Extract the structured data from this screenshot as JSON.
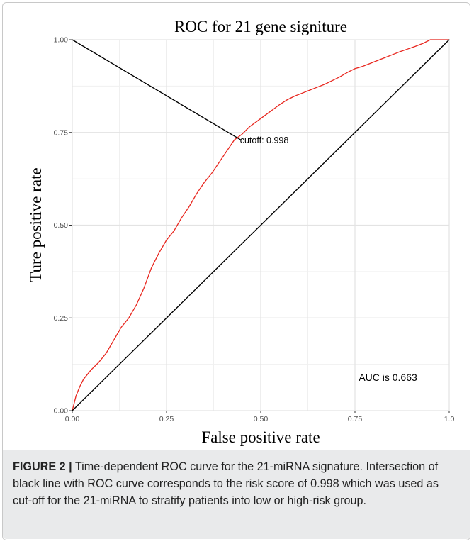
{
  "chart_data": {
    "type": "line",
    "title": "ROC for 21 gene signiture",
    "xlabel": "False positive rate",
    "ylabel": "Ture positive rate",
    "xlim": [
      0,
      1
    ],
    "ylim": [
      0,
      1
    ],
    "x_ticks": [
      0,
      0.25,
      0.5,
      0.75,
      1
    ],
    "x_tick_labels": [
      "0.00",
      "0.25",
      "0.50",
      "0.75",
      "1.0"
    ],
    "y_ticks": [
      0,
      0.25,
      0.5,
      0.75,
      1
    ],
    "y_tick_labels": [
      "0.00",
      "0.25",
      "0.50",
      "0.75",
      "1.00"
    ],
    "grid": true,
    "series": [
      {
        "color": "#e8271f",
        "x": [
          0,
          0.005,
          0.01,
          0.02,
          0.03,
          0.05,
          0.07,
          0.09,
          0.11,
          0.13,
          0.15,
          0.17,
          0.19,
          0.21,
          0.23,
          0.25,
          0.27,
          0.29,
          0.31,
          0.33,
          0.35,
          0.37,
          0.39,
          0.41,
          0.43,
          0.45,
          0.47,
          0.49,
          0.51,
          0.53,
          0.55,
          0.57,
          0.59,
          0.61,
          0.63,
          0.65,
          0.67,
          0.69,
          0.71,
          0.73,
          0.75,
          0.77,
          0.79,
          0.81,
          0.83,
          0.85,
          0.87,
          0.89,
          0.91,
          0.93,
          0.95,
          0.97,
          1.0
        ],
        "y": [
          0,
          0.02,
          0.04,
          0.065,
          0.085,
          0.11,
          0.13,
          0.155,
          0.19,
          0.225,
          0.25,
          0.285,
          0.33,
          0.385,
          0.425,
          0.46,
          0.485,
          0.52,
          0.55,
          0.585,
          0.615,
          0.64,
          0.67,
          0.7,
          0.73,
          0.745,
          0.765,
          0.78,
          0.795,
          0.81,
          0.825,
          0.838,
          0.848,
          0.856,
          0.864,
          0.872,
          0.88,
          0.89,
          0.9,
          0.912,
          0.922,
          0.928,
          0.936,
          0.944,
          0.952,
          0.96,
          0.968,
          0.975,
          0.982,
          0.99,
          1.0,
          1.0,
          1.0
        ]
      },
      {
        "color": "#000000",
        "x": [
          0,
          1
        ],
        "y": [
          0,
          1
        ]
      },
      {
        "color": "#000000",
        "x": [
          0,
          0.447
        ],
        "y": [
          1,
          0.73
        ]
      }
    ],
    "annotations": [
      {
        "text": "cutoff: 0.998",
        "x": 0.445,
        "y": 0.73
      },
      {
        "text": "AUC is 0.663",
        "x": 0.76,
        "y": 0.09
      }
    ]
  },
  "caption": {
    "lead": "FIGURE 2 |",
    "text": " Time-dependent ROC curve for the 21-miRNA signature. Intersection of black line with ROC curve corresponds to the risk score of 0.998 which was used as cut-off for the 21-miRNA to stratify patients into low or high-risk group."
  }
}
